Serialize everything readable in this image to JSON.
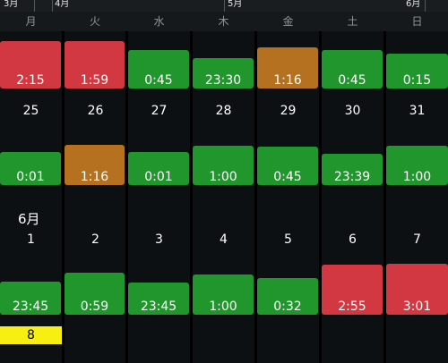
{
  "month_bar": {
    "march": "3月",
    "april": "4月",
    "may": "5月",
    "june": "6月"
  },
  "weekdays": [
    "月",
    "火",
    "水",
    "木",
    "金",
    "土",
    "日"
  ],
  "week1_durations": [
    "2:15",
    "1:59",
    "0:45",
    "23:30",
    "1:16",
    "0:45",
    "0:15"
  ],
  "week2_days": [
    "25",
    "26",
    "27",
    "28",
    "29",
    "30",
    "31"
  ],
  "week2_durations": [
    "0:01",
    "1:16",
    "0:01",
    "1:00",
    "0:45",
    "23:39",
    "1:00"
  ],
  "june_section_title": "6月",
  "week3_days": [
    "1",
    "2",
    "3",
    "4",
    "5",
    "6",
    "7"
  ],
  "week3_durations": [
    "23:45",
    "0:59",
    "23:45",
    "1:00",
    "0:32",
    "2:55",
    "3:01"
  ],
  "today_day": "8",
  "colors": {
    "green": "#21962d",
    "red": "#d23841",
    "orange": "#b5711f",
    "today": "#f8ef12"
  }
}
